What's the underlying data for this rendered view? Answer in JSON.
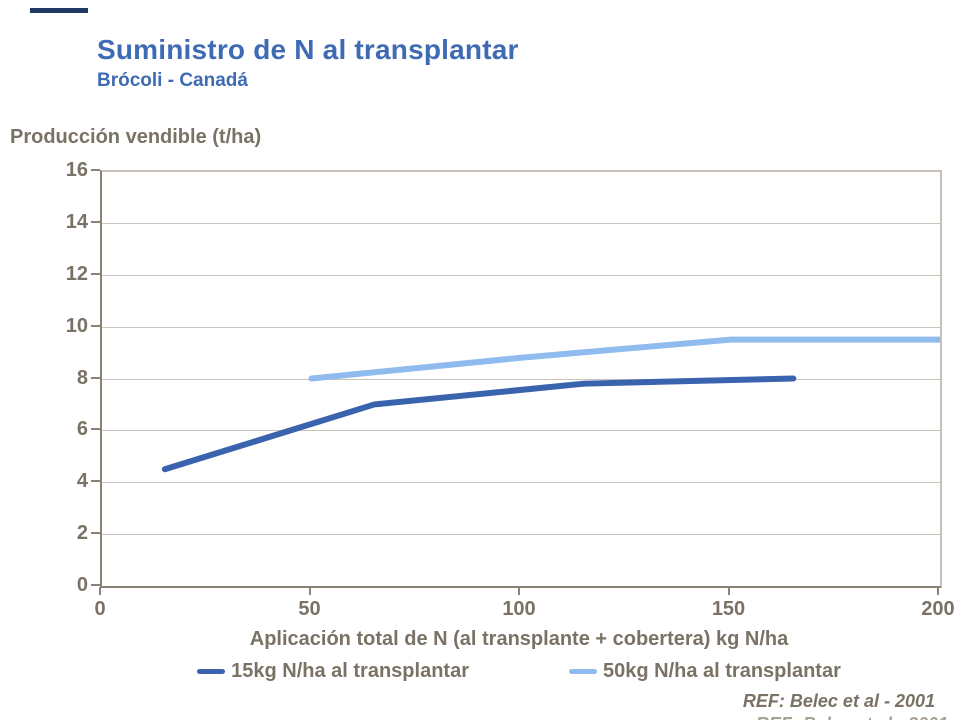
{
  "header": {
    "title": "Suministro de N al transplantar",
    "subtitle": "Brócoli - Canadá"
  },
  "chart_data": {
    "type": "line",
    "title": "Suministro de N al transplantar",
    "subtitle": "Brócoli - Canadá",
    "ylabel": "Producción vendible (t/ha)",
    "xlabel": "Aplicación total de N (al transplante + cobertera) kg N/ha",
    "xlim": [
      0,
      200
    ],
    "ylim": [
      0,
      16
    ],
    "x_ticks": [
      0,
      50,
      100,
      150,
      200
    ],
    "y_ticks": [
      0,
      2,
      4,
      6,
      8,
      10,
      12,
      14,
      16
    ],
    "grid": "horizontal",
    "legend_position": "bottom",
    "series": [
      {
        "name": "15kg N/ha al transplantar",
        "color": "#3A63AE",
        "x": [
          15,
          65,
          115,
          165
        ],
        "y": [
          4.5,
          7,
          7.8,
          8
        ]
      },
      {
        "name": "50kg N/ha al transplantar",
        "color": "#90BBEF",
        "x": [
          50,
          100,
          150,
          200
        ],
        "y": [
          8,
          8.8,
          9.5,
          9.5
        ]
      }
    ]
  },
  "footer": {
    "reference": "REF: Belec et al - 2001"
  },
  "colors": {
    "title_text": "#3E6BB3",
    "axis_text": "#7A7265",
    "axis_line": "#8A8275",
    "gridline": "#C9C3B9",
    "plot_border": "#C6C0B6",
    "top_accent": "#1F3864"
  }
}
